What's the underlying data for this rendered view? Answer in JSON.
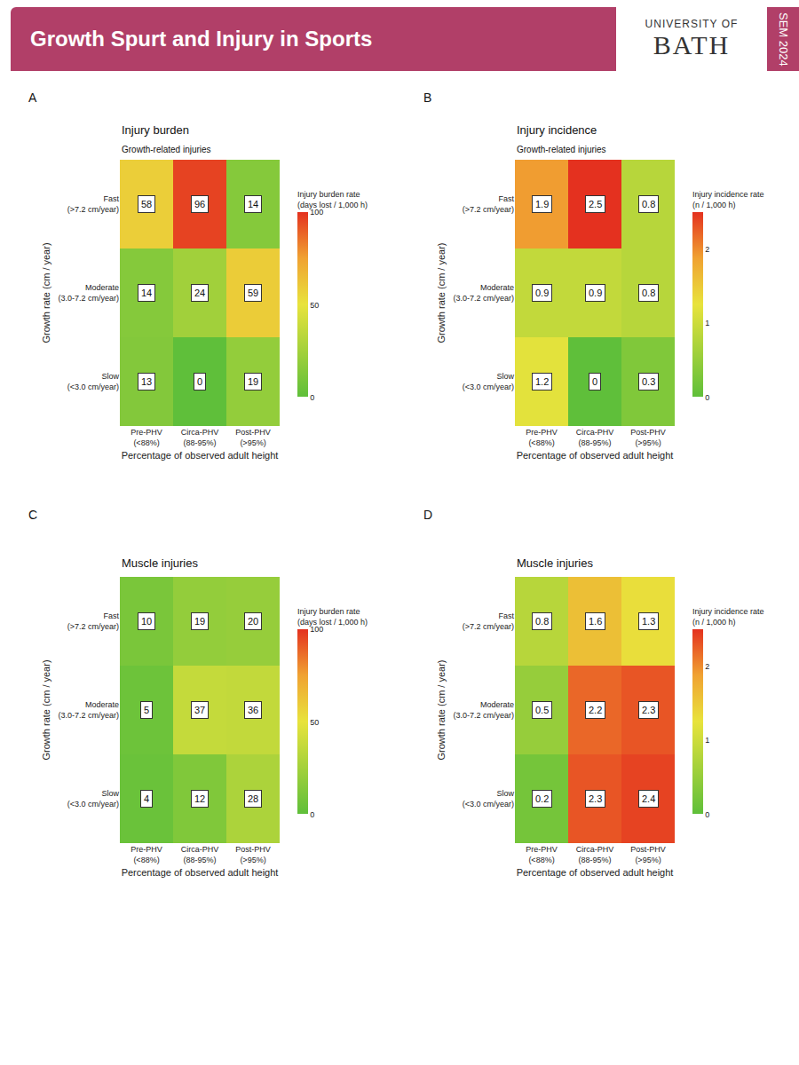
{
  "header": {
    "title": "Growth Spurt and Injury in Sports",
    "institution_line1": "UNIVERSITY OF",
    "institution_line2": "BATH",
    "event": "SEM 2024"
  },
  "chart_data": [
    {
      "type": "heatmap",
      "panel": "A",
      "title": "Injury burden",
      "subtitle": "Growth-related injuries",
      "x_label": "Percentage of observed adult height",
      "y_label": "Growth rate (cm / year)",
      "x_categories": [
        "Pre-PHV (<88%)",
        "Circa-PHV (88-95%)",
        "Post-PHV (>95%)"
      ],
      "y_categories": [
        "Fast (>7.2 cm/year)",
        "Moderate (3.0-7.2 cm/year)",
        "Slow (<3.0 cm/year)"
      ],
      "cells": [
        [
          58,
          96,
          14
        ],
        [
          14,
          24,
          59
        ],
        [
          13,
          0,
          19
        ]
      ],
      "colorbar": {
        "title": "Injury burden rate (days lost / 1,000 h)",
        "range": [
          0,
          100
        ],
        "ticks": [
          0,
          50,
          100
        ]
      },
      "data_labels": true
    },
    {
      "type": "heatmap",
      "panel": "B",
      "title": "Injury incidence",
      "subtitle": "Growth-related injuries",
      "x_label": "Percentage of observed adult height",
      "y_label": "Growth rate (cm / year)",
      "x_categories": [
        "Pre-PHV (<88%)",
        "Circa-PHV (88-95%)",
        "Post-PHV (>95%)"
      ],
      "y_categories": [
        "Fast (>7.2 cm/year)",
        "Moderate (3.0-7.2 cm/year)",
        "Slow (<3.0 cm/year)"
      ],
      "cells": [
        [
          1.9,
          2.5,
          0.8
        ],
        [
          0.9,
          0.9,
          0.8
        ],
        [
          1.2,
          0,
          0.3
        ]
      ],
      "colorbar": {
        "title": "Injury incidence rate (n / 1,000 h)",
        "range": [
          0,
          2.5
        ],
        "ticks": [
          0,
          1,
          2
        ]
      },
      "data_labels": true
    },
    {
      "type": "heatmap",
      "panel": "C",
      "title": "Muscle injuries",
      "x_label": "Percentage of observed adult height",
      "y_label": "Growth rate (cm / year)",
      "x_categories": [
        "Pre-PHV (<88%)",
        "Circa-PHV (88-95%)",
        "Post-PHV (>95%)"
      ],
      "y_categories": [
        "Fast (>7.2 cm/year)",
        "Moderate (3.0-7.2 cm/year)",
        "Slow (<3.0 cm/year)"
      ],
      "cells": [
        [
          10,
          19,
          20
        ],
        [
          5,
          37,
          36
        ],
        [
          4,
          12,
          28
        ]
      ],
      "colorbar": {
        "title": "Injury burden rate (days lost / 1,000 h)",
        "range": [
          0,
          100
        ],
        "ticks": [
          0,
          50,
          100
        ]
      },
      "data_labels": true
    },
    {
      "type": "heatmap",
      "panel": "D",
      "title": "Muscle injuries",
      "x_label": "Percentage of observed adult height",
      "y_label": "Growth rate (cm / year)",
      "x_categories": [
        "Pre-PHV (<88%)",
        "Circa-PHV (88-95%)",
        "Post-PHV (>95%)"
      ],
      "y_categories": [
        "Fast (>7.2 cm/year)",
        "Moderate (3.0-7.2 cm/year)",
        "Slow (<3.0 cm/year)"
      ],
      "cells": [
        [
          0.8,
          1.6,
          1.3
        ],
        [
          0.5,
          2.2,
          2.3
        ],
        [
          0.2,
          2.3,
          2.4
        ]
      ],
      "colorbar": {
        "title": "Injury incidence rate (n / 1,000 h)",
        "range": [
          0,
          2.5
        ],
        "ticks": [
          0,
          1,
          2
        ]
      },
      "data_labels": true
    }
  ]
}
